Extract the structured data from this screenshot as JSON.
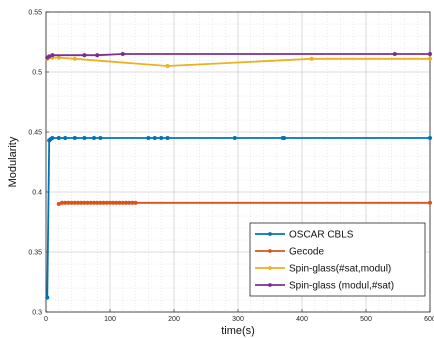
{
  "chart_data": {
    "type": "line",
    "title": "",
    "xlabel": "time(s)",
    "ylabel": "Modularity",
    "xlim": [
      0,
      600
    ],
    "ylim": [
      0.3,
      0.55
    ],
    "xticks": [
      0,
      100,
      200,
      300,
      400,
      500,
      600
    ],
    "yticks": [
      0.3,
      0.35,
      0.4,
      0.45,
      0.5,
      0.55
    ],
    "ytick_labels": [
      "0.3",
      "0.35",
      "0.4",
      "0.45",
      "0.5",
      "0.55"
    ],
    "grid": true,
    "minor_grid": true,
    "legend_position": "bottom-right",
    "series": [
      {
        "name": "OSCAR CBLS",
        "color": "#0072BD",
        "x": [
          2,
          5,
          7,
          10,
          20,
          30,
          45,
          60,
          75,
          85,
          160,
          170,
          180,
          190,
          295,
          370,
          372,
          600
        ],
        "y": [
          0.312,
          0.443,
          0.444,
          0.445,
          0.445,
          0.445,
          0.445,
          0.445,
          0.445,
          0.445,
          0.445,
          0.445,
          0.445,
          0.445,
          0.445,
          0.445,
          0.445,
          0.445
        ]
      },
      {
        "name": "Gecode",
        "color": "#D95319",
        "x": [
          20,
          25,
          30,
          35,
          40,
          45,
          50,
          55,
          60,
          65,
          70,
          75,
          80,
          85,
          90,
          95,
          100,
          105,
          110,
          115,
          120,
          125,
          130,
          135,
          140,
          600
        ],
        "y": [
          0.39,
          0.391,
          0.391,
          0.391,
          0.391,
          0.391,
          0.391,
          0.391,
          0.391,
          0.391,
          0.391,
          0.391,
          0.391,
          0.391,
          0.391,
          0.391,
          0.391,
          0.391,
          0.391,
          0.391,
          0.391,
          0.391,
          0.391,
          0.391,
          0.391,
          0.391
        ]
      },
      {
        "name": "Spin-glass(#sat,modul)",
        "color": "#EDB120",
        "x": [
          2,
          10,
          20,
          45,
          190,
          415,
          600
        ],
        "y": [
          0.511,
          0.512,
          0.512,
          0.511,
          0.505,
          0.511,
          0.511
        ]
      },
      {
        "name": "Spin-glass (modul,#sat)",
        "color": "#7E2F8E",
        "x": [
          2,
          5,
          10,
          60,
          80,
          120,
          545,
          600
        ],
        "y": [
          0.512,
          0.513,
          0.514,
          0.514,
          0.514,
          0.515,
          0.515,
          0.515
        ]
      }
    ]
  }
}
